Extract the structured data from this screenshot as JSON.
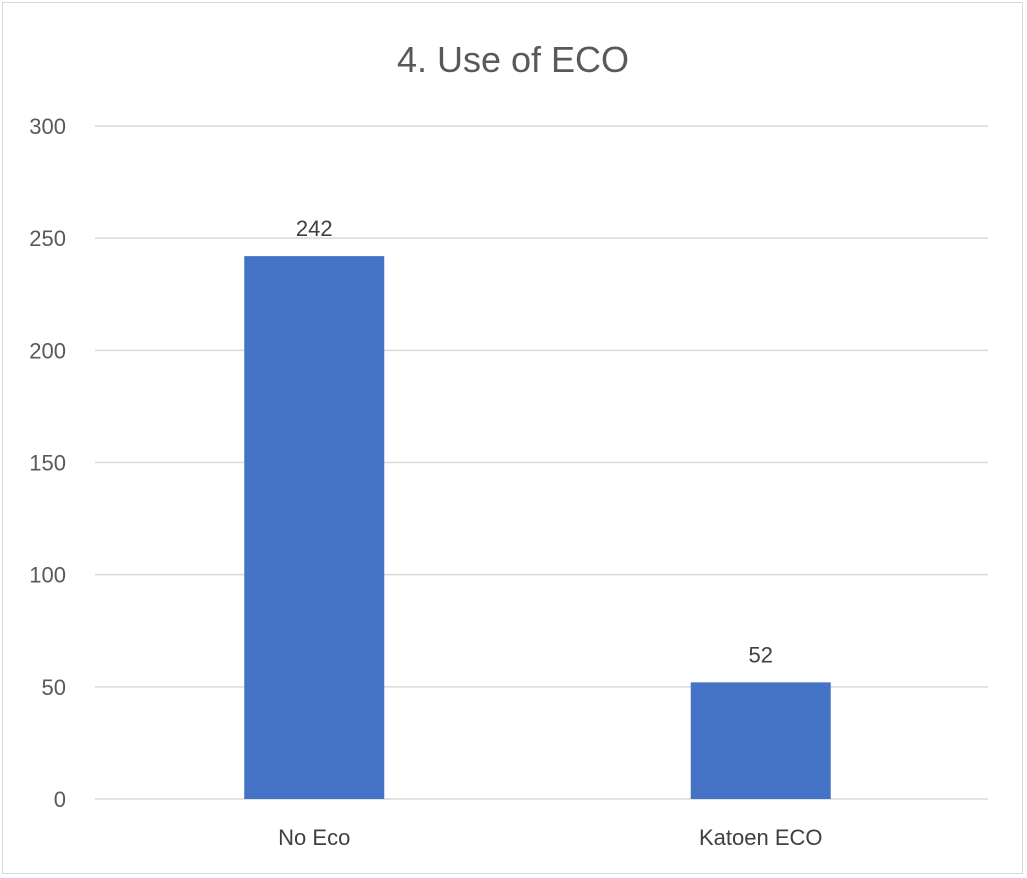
{
  "chart_data": {
    "type": "bar",
    "title": "4. Use of ECO",
    "categories": [
      "No Eco",
      "Katoen ECO"
    ],
    "values": [
      242,
      52
    ],
    "ylim": [
      0,
      300
    ],
    "yticks": [
      0,
      50,
      100,
      150,
      200,
      250,
      300
    ],
    "xlabel": "",
    "ylabel": "",
    "grid": true,
    "legend": "none",
    "data_labels": true,
    "bar_color": "#4472C4"
  }
}
